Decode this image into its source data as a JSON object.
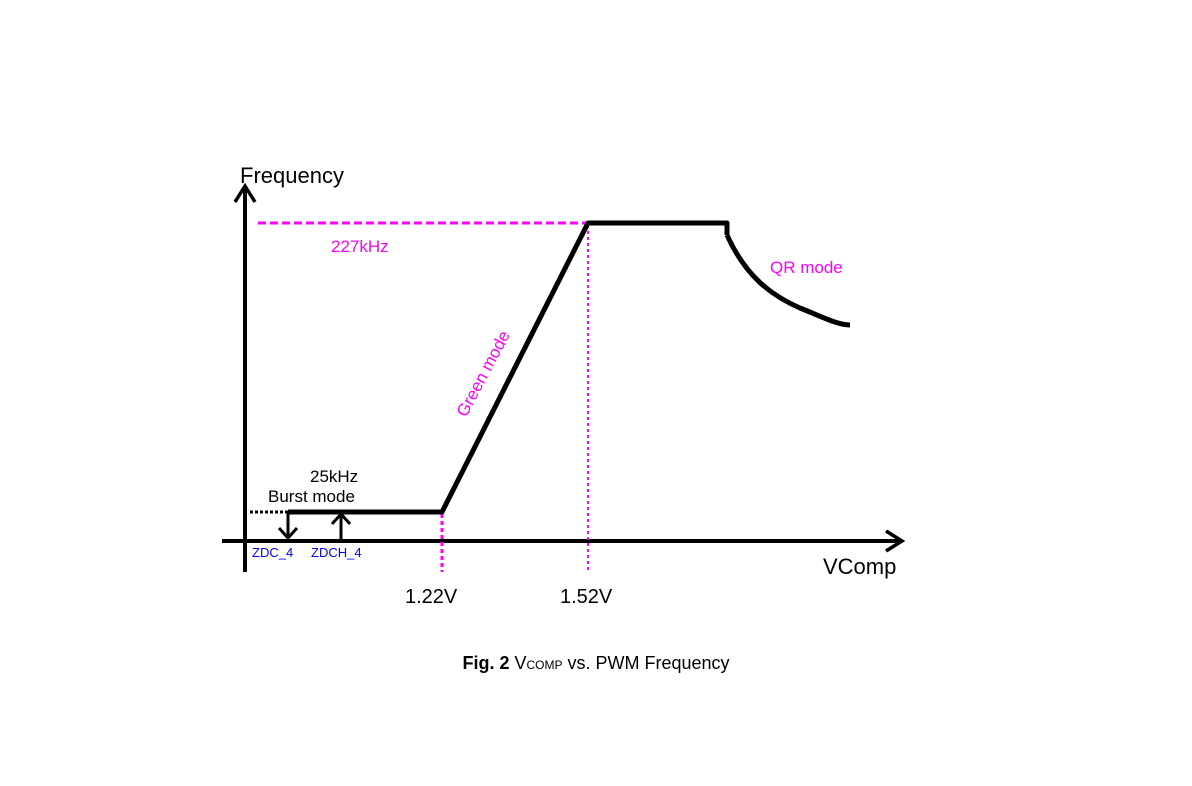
{
  "diagram": {
    "y_axis_label": "Frequency",
    "x_axis_label": "VComp",
    "high_freq_label": "227kHz",
    "low_freq_label": "25kHz",
    "burst_label": "Burst mode",
    "green_label": "Green mode",
    "qr_label": "QR mode",
    "zdc_label": "ZDC_4",
    "zdch_label": "ZDCH_4",
    "v1_label": "1.22V",
    "v2_label": "1.52V"
  },
  "caption": {
    "fig": "Fig. 2",
    "v": "V",
    "sub": "COMP",
    "rest": " vs. PWM Frequency"
  },
  "colors": {
    "accent": "#ff00ff",
    "label_blue": "#0000ff",
    "line": "#000000"
  }
}
